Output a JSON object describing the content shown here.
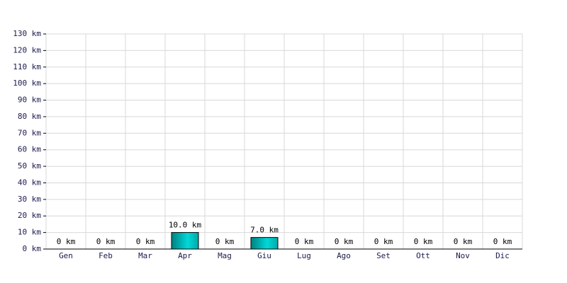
{
  "chart_data": {
    "type": "bar",
    "categories": [
      "Gen",
      "Feb",
      "Mar",
      "Apr",
      "Mag",
      "Giu",
      "Lug",
      "Ago",
      "Set",
      "Ott",
      "Nov",
      "Dic"
    ],
    "values": [
      0,
      0,
      0,
      10,
      0,
      7,
      0,
      0,
      0,
      0,
      0,
      0
    ],
    "value_labels": [
      "0 km",
      "0 km",
      "0 km",
      "10.0 km",
      "0 km",
      "7.0 km",
      "0 km",
      "0 km",
      "0 km",
      "0 km",
      "0 km",
      "0 km"
    ],
    "color": "#00d8d8",
    "ylim": [
      0,
      130
    ],
    "yticks": [
      {
        "value": 0,
        "label": "0 km"
      },
      {
        "value": 10,
        "label": "10 km"
      },
      {
        "value": 20,
        "label": "20 km"
      },
      {
        "value": 30,
        "label": "30 km"
      },
      {
        "value": 40,
        "label": "40 km"
      },
      {
        "value": 50,
        "label": "50 km"
      },
      {
        "value": 60,
        "label": "60 km"
      },
      {
        "value": 70,
        "label": "70 km"
      },
      {
        "value": 80,
        "label": "80 km"
      },
      {
        "value": 90,
        "label": "90 km"
      },
      {
        "value": 100,
        "label": "100 km"
      },
      {
        "value": 110,
        "label": "110 km"
      },
      {
        "value": 120,
        "label": "120 km"
      },
      {
        "value": 130,
        "label": "130 km"
      }
    ],
    "grid": true
  }
}
